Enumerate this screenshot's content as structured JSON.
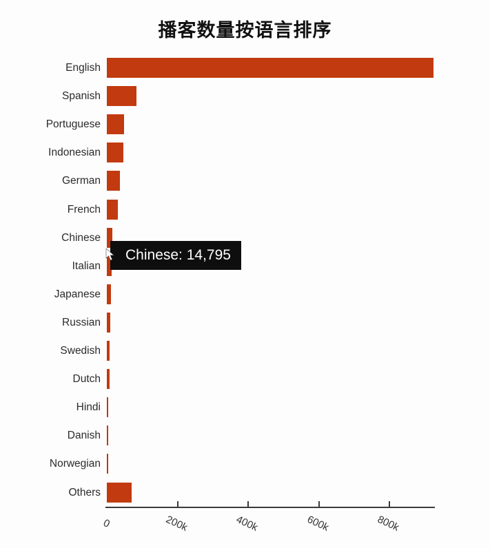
{
  "page": {
    "background": "#fdfdfd"
  },
  "chart_data": {
    "type": "bar",
    "orientation": "horizontal",
    "title": "播客数量按语言排序",
    "xlabel": "",
    "ylabel": "",
    "categories": [
      "English",
      "Spanish",
      "Portuguese",
      "Indonesian",
      "German",
      "French",
      "Chinese",
      "Italian",
      "Japanese",
      "Russian",
      "Swedish",
      "Dutch",
      "Hindi",
      "Danish",
      "Norwegian",
      "Others"
    ],
    "values": [
      925000,
      84000,
      49000,
      46000,
      38000,
      31000,
      14795,
      13800,
      11500,
      10200,
      8600,
      7200,
      4800,
      3900,
      3200,
      70000
    ],
    "bar_color": "#c23a0f",
    "grid": false,
    "legend": "none",
    "xlim": [
      0,
      927000
    ],
    "value_axis_ticks": [
      {
        "value": 0,
        "label": "0"
      },
      {
        "value": 200000,
        "label": "200k"
      },
      {
        "value": 400000,
        "label": "400k"
      },
      {
        "value": 600000,
        "label": "600k"
      },
      {
        "value": 800000,
        "label": "800k"
      }
    ],
    "tick_label_rotation_deg": 25
  },
  "tooltip": {
    "category": "Chinese",
    "value": "14,795",
    "text": "Chinese: 14,795",
    "background": "#0e0e0e",
    "text_color": "#ffffff"
  }
}
